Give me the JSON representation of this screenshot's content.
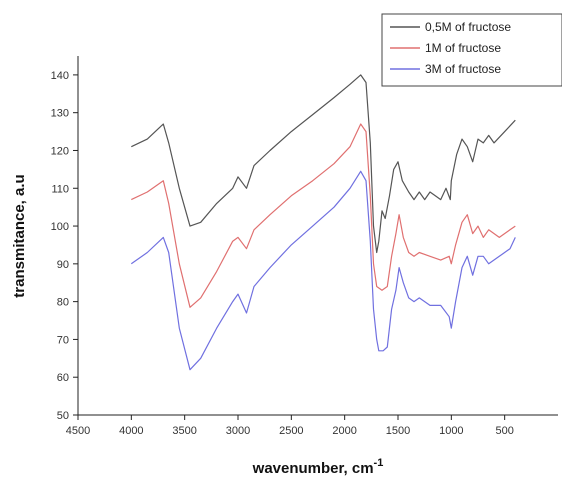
{
  "chart_data": {
    "type": "line",
    "xlabel": "wavenumber, cm",
    "xlabel_superscript": "-1",
    "ylabel": "transmitance, a.u",
    "xlim": [
      4500,
      0
    ],
    "ylim": [
      50,
      145
    ],
    "x_ticks": [
      "4500",
      "4000",
      "3500",
      "3000",
      "2500",
      "2000",
      "1500",
      "1000",
      "500"
    ],
    "y_ticks": [
      "50",
      "60",
      "70",
      "80",
      "90",
      "100",
      "110",
      "120",
      "130",
      "140"
    ],
    "legend_position": "top-right",
    "grid": false,
    "series": [
      {
        "name": "0,5M of fructose",
        "color": "#555555",
        "points": [
          [
            4000,
            121
          ],
          [
            3850,
            123
          ],
          [
            3700,
            127
          ],
          [
            3650,
            122
          ],
          [
            3550,
            110
          ],
          [
            3450,
            100
          ],
          [
            3350,
            101
          ],
          [
            3200,
            106
          ],
          [
            3050,
            110
          ],
          [
            3000,
            113
          ],
          [
            2920,
            110
          ],
          [
            2850,
            116
          ],
          [
            2700,
            120
          ],
          [
            2500,
            125
          ],
          [
            2300,
            129.5
          ],
          [
            2100,
            134
          ],
          [
            1950,
            137.5
          ],
          [
            1850,
            140
          ],
          [
            1800,
            138
          ],
          [
            1760,
            122
          ],
          [
            1730,
            100
          ],
          [
            1700,
            93
          ],
          [
            1680,
            96
          ],
          [
            1650,
            104
          ],
          [
            1620,
            102
          ],
          [
            1580,
            108
          ],
          [
            1540,
            115
          ],
          [
            1500,
            117
          ],
          [
            1460,
            112
          ],
          [
            1400,
            109
          ],
          [
            1350,
            107
          ],
          [
            1300,
            109
          ],
          [
            1250,
            107
          ],
          [
            1200,
            109
          ],
          [
            1150,
            108
          ],
          [
            1100,
            107
          ],
          [
            1050,
            110
          ],
          [
            1010,
            107
          ],
          [
            1000,
            112
          ],
          [
            950,
            119
          ],
          [
            900,
            123
          ],
          [
            850,
            121
          ],
          [
            800,
            117
          ],
          [
            750,
            123
          ],
          [
            700,
            122
          ],
          [
            650,
            124
          ],
          [
            600,
            122
          ],
          [
            500,
            125
          ],
          [
            400,
            128
          ]
        ]
      },
      {
        "name": "1M   of fructose",
        "color": "#e07070",
        "points": [
          [
            4000,
            107
          ],
          [
            3850,
            109
          ],
          [
            3700,
            112
          ],
          [
            3650,
            106
          ],
          [
            3550,
            90
          ],
          [
            3450,
            78.5
          ],
          [
            3350,
            81
          ],
          [
            3200,
            88
          ],
          [
            3050,
            96
          ],
          [
            3000,
            97
          ],
          [
            2920,
            94
          ],
          [
            2850,
            99
          ],
          [
            2700,
            103
          ],
          [
            2500,
            108
          ],
          [
            2300,
            112
          ],
          [
            2100,
            116.5
          ],
          [
            1950,
            121
          ],
          [
            1850,
            127
          ],
          [
            1800,
            125
          ],
          [
            1760,
            108
          ],
          [
            1730,
            90
          ],
          [
            1700,
            84
          ],
          [
            1650,
            83
          ],
          [
            1600,
            84
          ],
          [
            1560,
            92
          ],
          [
            1520,
            98
          ],
          [
            1490,
            103
          ],
          [
            1450,
            97
          ],
          [
            1400,
            93
          ],
          [
            1350,
            92
          ],
          [
            1300,
            93
          ],
          [
            1200,
            92
          ],
          [
            1100,
            91
          ],
          [
            1020,
            92
          ],
          [
            1000,
            90
          ],
          [
            960,
            95
          ],
          [
            900,
            101
          ],
          [
            850,
            103
          ],
          [
            800,
            98
          ],
          [
            750,
            100
          ],
          [
            700,
            97
          ],
          [
            650,
            99
          ],
          [
            550,
            97
          ],
          [
            450,
            99
          ],
          [
            400,
            100
          ]
        ]
      },
      {
        "name": "3M   of fructose",
        "color": "#7070e0",
        "points": [
          [
            4000,
            90
          ],
          [
            3850,
            93
          ],
          [
            3700,
            97
          ],
          [
            3650,
            93
          ],
          [
            3550,
            73
          ],
          [
            3450,
            62
          ],
          [
            3350,
            65
          ],
          [
            3200,
            73
          ],
          [
            3050,
            80
          ],
          [
            3000,
            82
          ],
          [
            2920,
            77
          ],
          [
            2850,
            84
          ],
          [
            2700,
            89
          ],
          [
            2500,
            95
          ],
          [
            2300,
            100
          ],
          [
            2100,
            105
          ],
          [
            1950,
            110
          ],
          [
            1850,
            114.5
          ],
          [
            1800,
            112
          ],
          [
            1760,
            96
          ],
          [
            1730,
            78
          ],
          [
            1700,
            70
          ],
          [
            1680,
            67
          ],
          [
            1640,
            67
          ],
          [
            1600,
            68
          ],
          [
            1560,
            78
          ],
          [
            1520,
            83
          ],
          [
            1490,
            89
          ],
          [
            1450,
            85
          ],
          [
            1400,
            81
          ],
          [
            1350,
            80
          ],
          [
            1300,
            81
          ],
          [
            1200,
            79
          ],
          [
            1100,
            79
          ],
          [
            1020,
            76
          ],
          [
            1000,
            73
          ],
          [
            960,
            80
          ],
          [
            900,
            89
          ],
          [
            850,
            92
          ],
          [
            800,
            87
          ],
          [
            750,
            92
          ],
          [
            700,
            92
          ],
          [
            650,
            90
          ],
          [
            550,
            92
          ],
          [
            450,
            94
          ],
          [
            400,
            97
          ]
        ]
      }
    ]
  }
}
